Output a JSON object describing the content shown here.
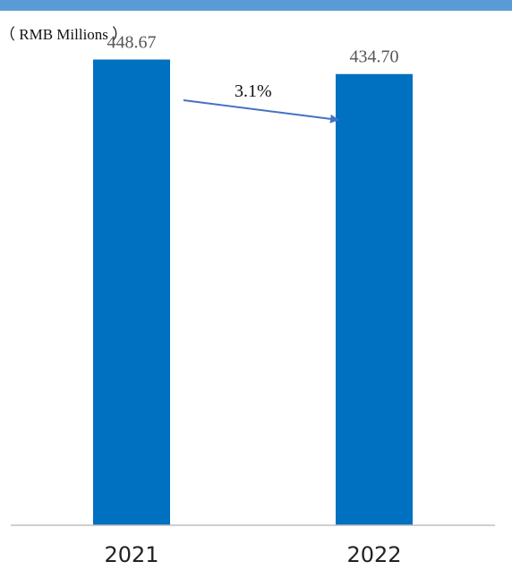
{
  "chart_data": {
    "type": "bar",
    "categories": [
      "2021",
      "2022"
    ],
    "values": [
      448.67,
      434.7
    ],
    "value_labels": [
      "448.67",
      "434.70"
    ],
    "unit_label": "（ RMB Millions ）",
    "change_label": "3.1%",
    "ylim": [
      0,
      500
    ],
    "grid": false,
    "colors": {
      "bar": "#0070c0",
      "top_band": "#5b9bd5",
      "arrow": "#4472c4",
      "baseline": "#bfbfbf"
    }
  }
}
